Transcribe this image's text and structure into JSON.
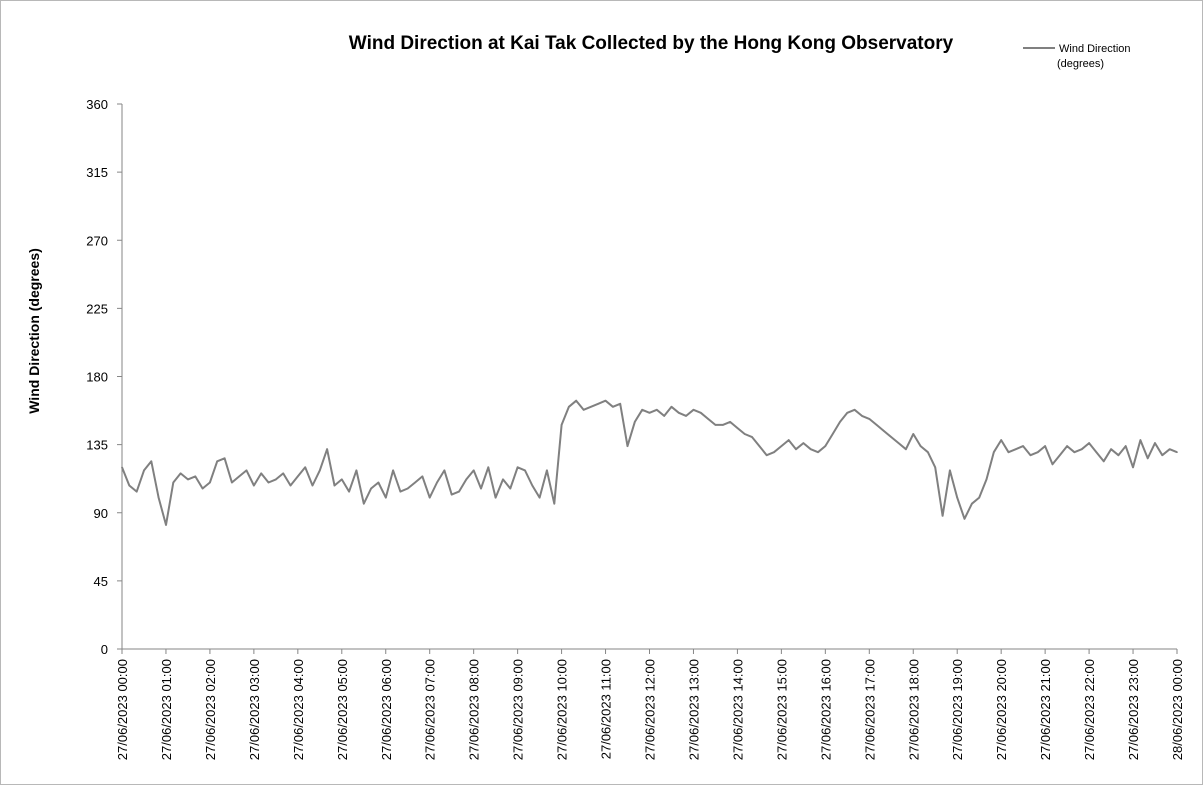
{
  "chart_data": {
    "type": "line",
    "title": "Wind Direction at Kai Tak Collected by the Hong Kong Observatory",
    "xlabel": "",
    "ylabel": "Wind Direction (degrees)",
    "ylim": [
      0,
      360
    ],
    "yticks": [
      "0",
      "45",
      "90",
      "135",
      "180",
      "225",
      "270",
      "315",
      "360"
    ],
    "xticks": [
      "27/06/2023 00:00",
      "27/06/2023 01:00",
      "27/06/2023 02:00",
      "27/06/2023 03:00",
      "27/06/2023 04:00",
      "27/06/2023 05:00",
      "27/06/2023 06:00",
      "27/06/2023 07:00",
      "27/06/2023 08:00",
      "27/06/2023 09:00",
      "27/06/2023 10:00",
      "27/06/2023 11:00",
      "27/06/2023 12:00",
      "27/06/2023 13:00",
      "27/06/2023 14:00",
      "27/06/2023 15:00",
      "27/06/2023 16:00",
      "27/06/2023 17:00",
      "27/06/2023 18:00",
      "27/06/2023 19:00",
      "27/06/2023 20:00",
      "27/06/2023 21:00",
      "27/06/2023 22:00",
      "27/06/2023 23:00",
      "28/06/2023 00:00"
    ],
    "grid": false,
    "legend_position": "top-right",
    "series": [
      {
        "name": "Wind Direction\n(degrees)",
        "color": "#808080",
        "x": [
          "00:00",
          "00:10",
          "00:20",
          "00:30",
          "00:40",
          "00:50",
          "01:00",
          "01:10",
          "01:20",
          "01:30",
          "01:40",
          "01:50",
          "02:00",
          "02:10",
          "02:20",
          "02:30",
          "02:40",
          "02:50",
          "03:00",
          "03:10",
          "03:20",
          "03:30",
          "03:40",
          "03:50",
          "04:00",
          "04:10",
          "04:20",
          "04:30",
          "04:40",
          "04:50",
          "05:00",
          "05:10",
          "05:20",
          "05:30",
          "05:40",
          "05:50",
          "06:00",
          "06:10",
          "06:20",
          "06:30",
          "06:40",
          "06:50",
          "07:00",
          "07:10",
          "07:20",
          "07:30",
          "07:40",
          "07:50",
          "08:00",
          "08:10",
          "08:20",
          "08:30",
          "08:40",
          "08:50",
          "09:00",
          "09:10",
          "09:20",
          "09:30",
          "09:40",
          "09:50",
          "10:00",
          "10:10",
          "10:20",
          "10:30",
          "10:40",
          "10:50",
          "11:00",
          "11:10",
          "11:20",
          "11:30",
          "11:40",
          "11:50",
          "12:00",
          "12:10",
          "12:20",
          "12:30",
          "12:40",
          "12:50",
          "13:00",
          "13:10",
          "13:20",
          "13:30",
          "13:40",
          "13:50",
          "14:00",
          "14:10",
          "14:20",
          "14:30",
          "14:40",
          "14:50",
          "15:00",
          "15:10",
          "15:20",
          "15:30",
          "15:40",
          "15:50",
          "16:00",
          "16:10",
          "16:20",
          "16:30",
          "16:40",
          "16:50",
          "17:00",
          "17:10",
          "17:20",
          "17:30",
          "17:40",
          "17:50",
          "18:00",
          "18:10",
          "18:20",
          "18:30",
          "18:40",
          "18:50",
          "19:00",
          "19:10",
          "19:20",
          "19:30",
          "19:40",
          "19:50",
          "20:00",
          "20:10",
          "20:20",
          "20:30",
          "20:40",
          "20:50",
          "21:00",
          "21:10",
          "21:20",
          "21:30",
          "21:40",
          "21:50",
          "22:00",
          "22:10",
          "22:20",
          "22:30",
          "22:40",
          "22:50",
          "23:00",
          "23:10",
          "23:20",
          "23:30",
          "23:40",
          "23:50",
          "24:00"
        ],
        "values": [
          120,
          108,
          104,
          118,
          124,
          100,
          82,
          110,
          116,
          112,
          114,
          106,
          110,
          124,
          126,
          110,
          114,
          118,
          108,
          116,
          110,
          112,
          116,
          108,
          114,
          120,
          108,
          118,
          132,
          108,
          112,
          104,
          118,
          96,
          106,
          110,
          100,
          118,
          104,
          106,
          110,
          114,
          100,
          110,
          118,
          102,
          104,
          112,
          118,
          106,
          120,
          100,
          112,
          106,
          120,
          118,
          108,
          100,
          118,
          96,
          148,
          160,
          164,
          158,
          160,
          162,
          164,
          160,
          162,
          134,
          150,
          158,
          156,
          158,
          154,
          160,
          156,
          154,
          158,
          156,
          152,
          148,
          148,
          150,
          146,
          142,
          140,
          134,
          128,
          130,
          134,
          138,
          132,
          136,
          132,
          130,
          134,
          142,
          150,
          156,
          158,
          154,
          152,
          148,
          144,
          140,
          136,
          132,
          142,
          134,
          130,
          120,
          88,
          118,
          100,
          86,
          96,
          100,
          112,
          130,
          138,
          130,
          132,
          134,
          128,
          130,
          134,
          122,
          128,
          134,
          130,
          132,
          136,
          130,
          124,
          132,
          128,
          134,
          120,
          138,
          126,
          136,
          128,
          132,
          130
        ]
      }
    ]
  }
}
